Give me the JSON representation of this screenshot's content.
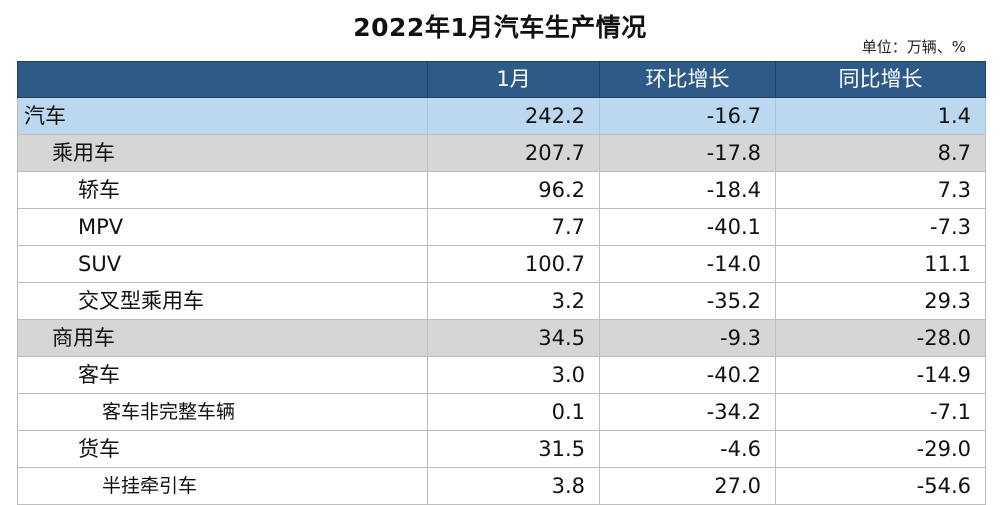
{
  "title": "2022年1月汽车生产情况",
  "unit": "单位：万辆、%",
  "table": {
    "headers": [
      "",
      "1月",
      "环比增长",
      "同比增长"
    ],
    "rows": [
      {
        "label": "汽车",
        "level": 0,
        "jan": "242.2",
        "mom": "-16.7",
        "yoy": "1.4"
      },
      {
        "label": "乘用车",
        "level": 1,
        "jan": "207.7",
        "mom": "-17.8",
        "yoy": "8.7"
      },
      {
        "label": "轿车",
        "level": 2,
        "jan": "96.2",
        "mom": "-18.4",
        "yoy": "7.3"
      },
      {
        "label": "MPV",
        "level": 2,
        "jan": "7.7",
        "mom": "-40.1",
        "yoy": "-7.3"
      },
      {
        "label": "SUV",
        "level": 2,
        "jan": "100.7",
        "mom": "-14.0",
        "yoy": "11.1"
      },
      {
        "label": "交叉型乘用车",
        "level": 2,
        "jan": "3.2",
        "mom": "-35.2",
        "yoy": "29.3"
      },
      {
        "label": "商用车",
        "level": 1,
        "jan": "34.5",
        "mom": "-9.3",
        "yoy": "-28.0"
      },
      {
        "label": "客车",
        "level": 2,
        "jan": "3.0",
        "mom": "-40.2",
        "yoy": "-14.9"
      },
      {
        "label": "客车非完整车辆",
        "level": 3,
        "jan": "0.1",
        "mom": "-34.2",
        "yoy": "-7.1"
      },
      {
        "label": "货车",
        "level": 2,
        "jan": "31.5",
        "mom": "-4.6",
        "yoy": "-29.0"
      },
      {
        "label": "半挂牵引车",
        "level": 3,
        "jan": "3.8",
        "mom": "27.0",
        "yoy": "-54.6"
      }
    ]
  }
}
